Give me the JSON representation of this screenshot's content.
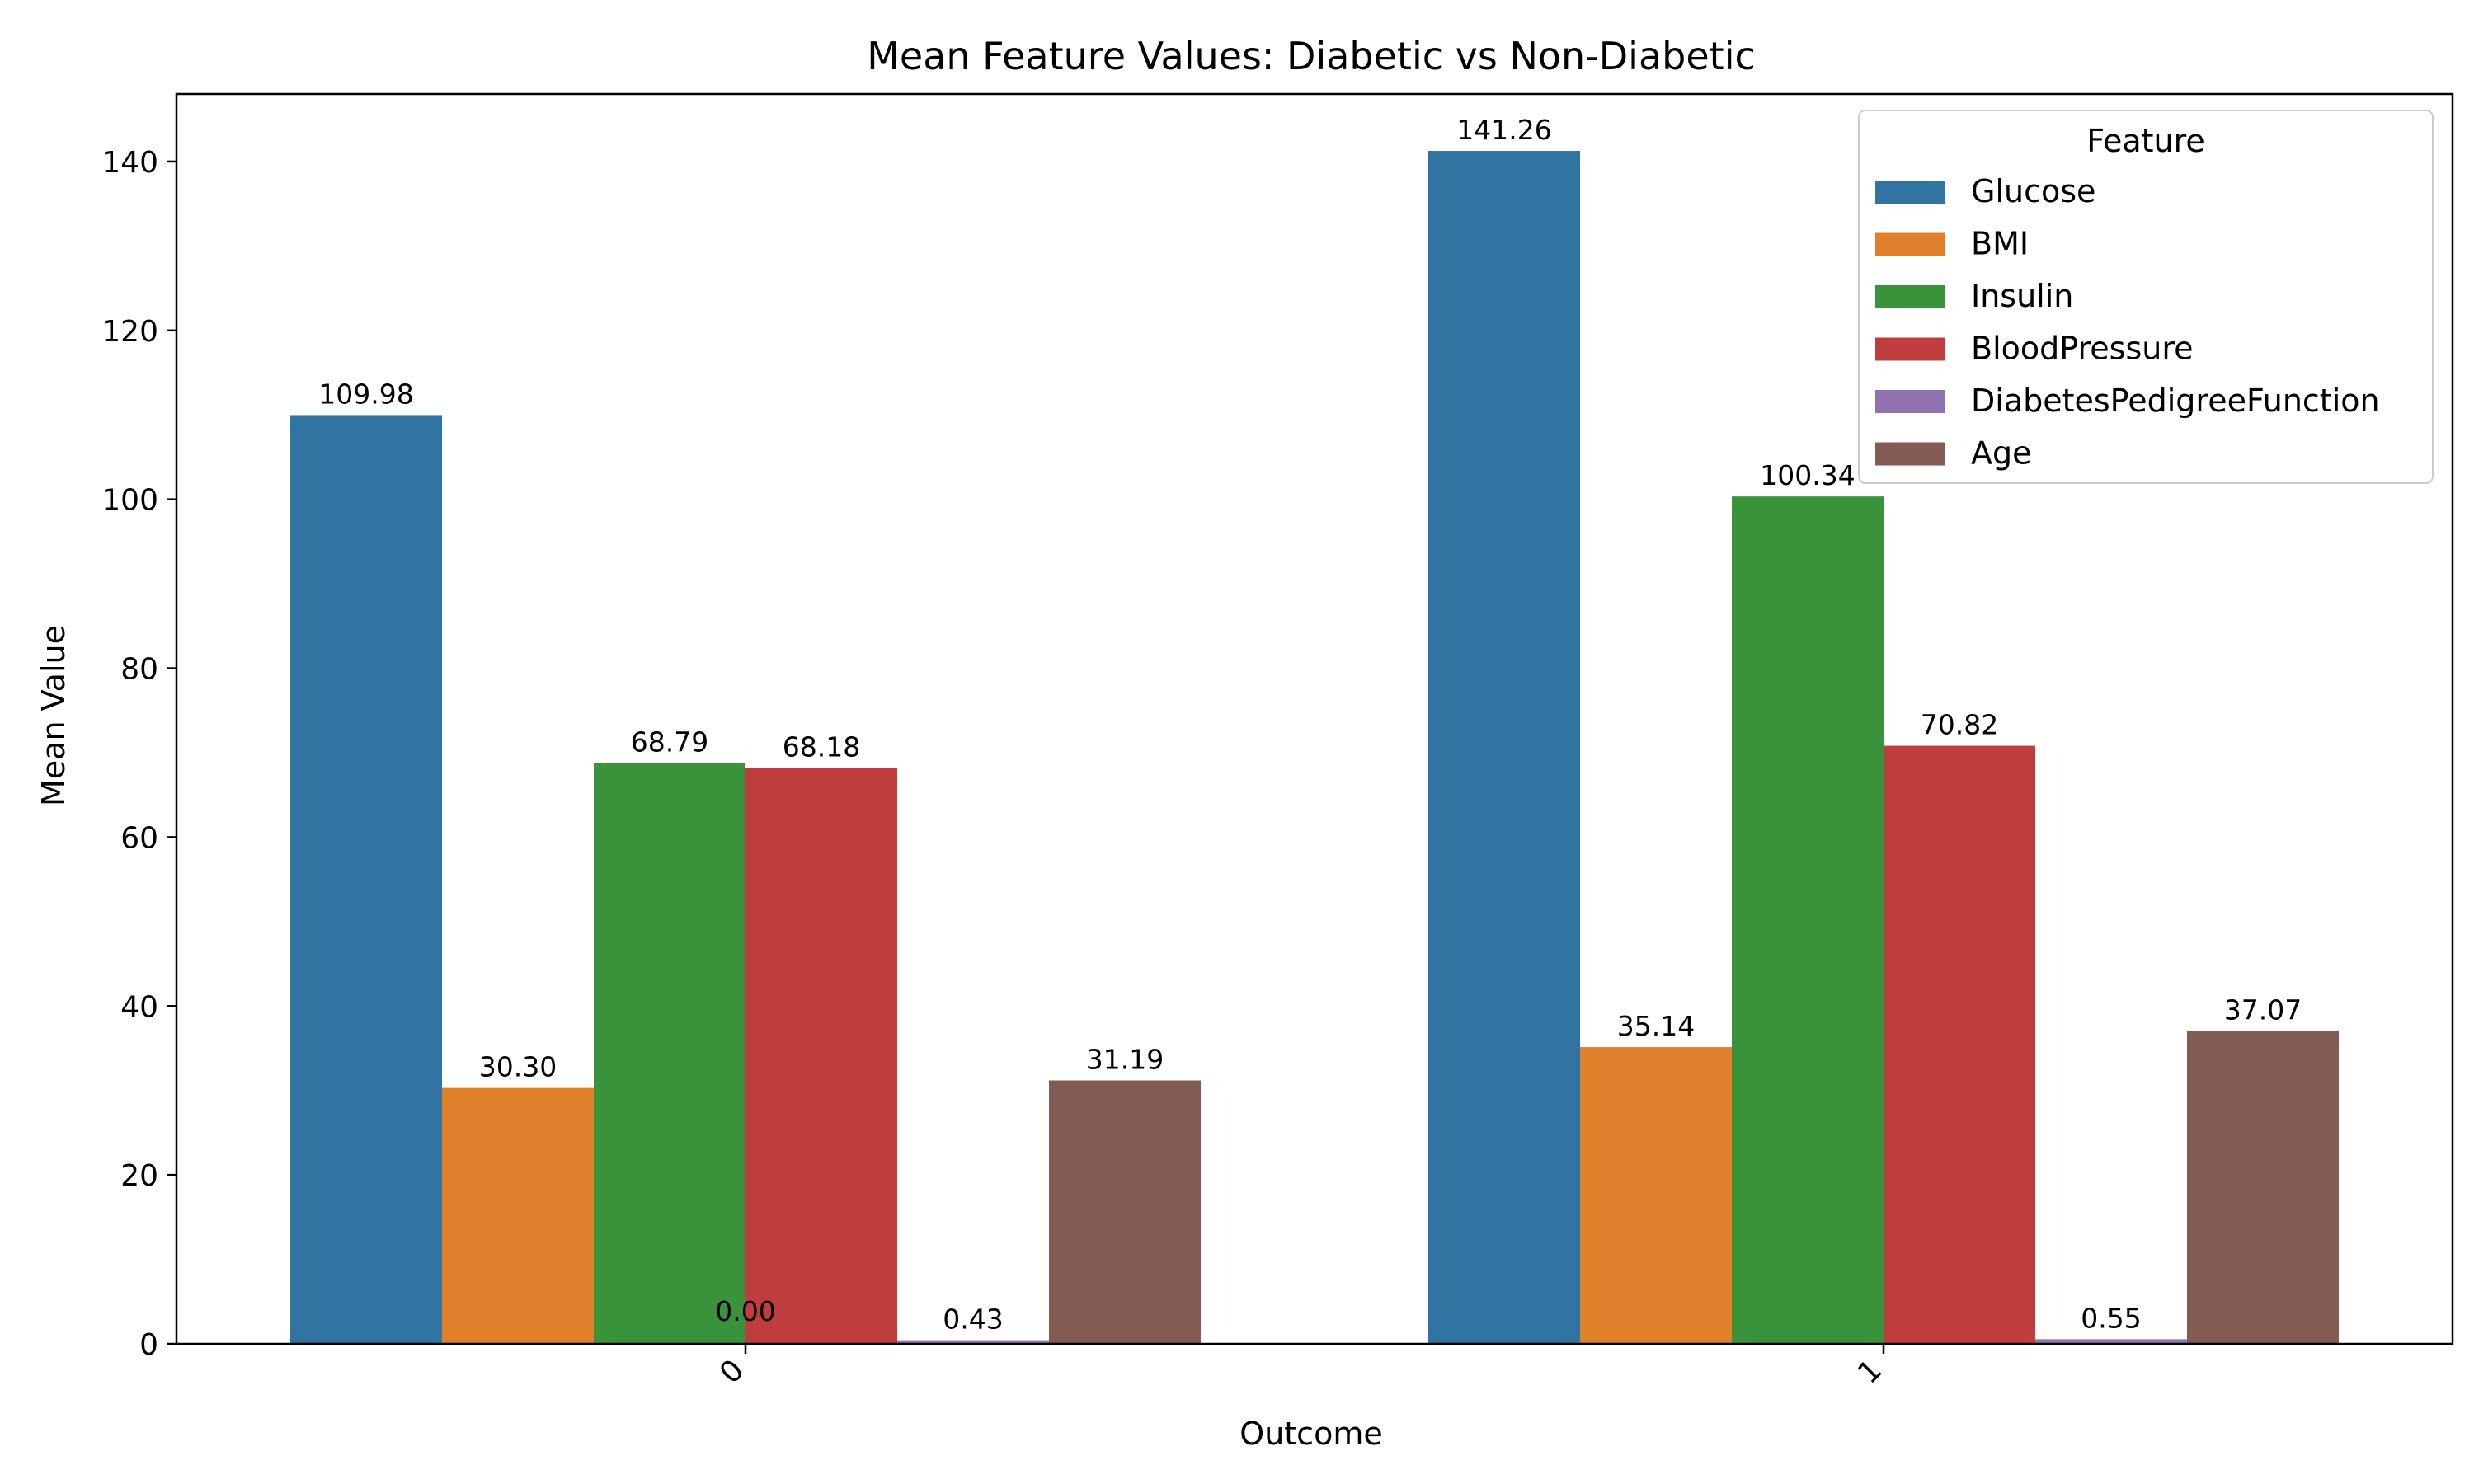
{
  "chart_data": {
    "type": "bar",
    "title": "Mean Feature Values: Diabetic vs Non-Diabetic",
    "xlabel": "Outcome",
    "ylabel": "Mean Value",
    "categories": [
      "0",
      "1"
    ],
    "ylim": [
      0,
      148
    ],
    "yticks": [
      0,
      20,
      40,
      60,
      80,
      100,
      120,
      140
    ],
    "grid": false,
    "legend": {
      "title": "Feature",
      "placement": "top-right"
    },
    "series": [
      {
        "name": "Glucose",
        "color": "#3274a1",
        "values": [
          109.98,
          141.26
        ],
        "labels": [
          "109.98",
          "141.26"
        ]
      },
      {
        "name": "BMI",
        "color": "#e1812c",
        "values": [
          30.3,
          35.14
        ],
        "labels": [
          "30.30",
          "35.14"
        ]
      },
      {
        "name": "Insulin",
        "color": "#3a923a",
        "values": [
          68.79,
          100.34
        ],
        "labels": [
          "68.79",
          "100.34"
        ]
      },
      {
        "name": "BloodPressure",
        "color": "#c03d3e",
        "values": [
          68.18,
          70.82
        ],
        "labels": [
          "68.18",
          "70.82"
        ]
      },
      {
        "name": "DiabetesPedigreeFunction",
        "color": "#9372b2",
        "values": [
          0.43,
          0.55
        ],
        "labels": [
          "0.43",
          "0.55"
        ]
      },
      {
        "name": "Age",
        "color": "#845b53",
        "values": [
          31.19,
          37.07
        ],
        "labels": [
          "31.19",
          "37.07"
        ]
      }
    ],
    "extra_labels": [
      {
        "category": "0",
        "text": "0.00"
      }
    ]
  }
}
